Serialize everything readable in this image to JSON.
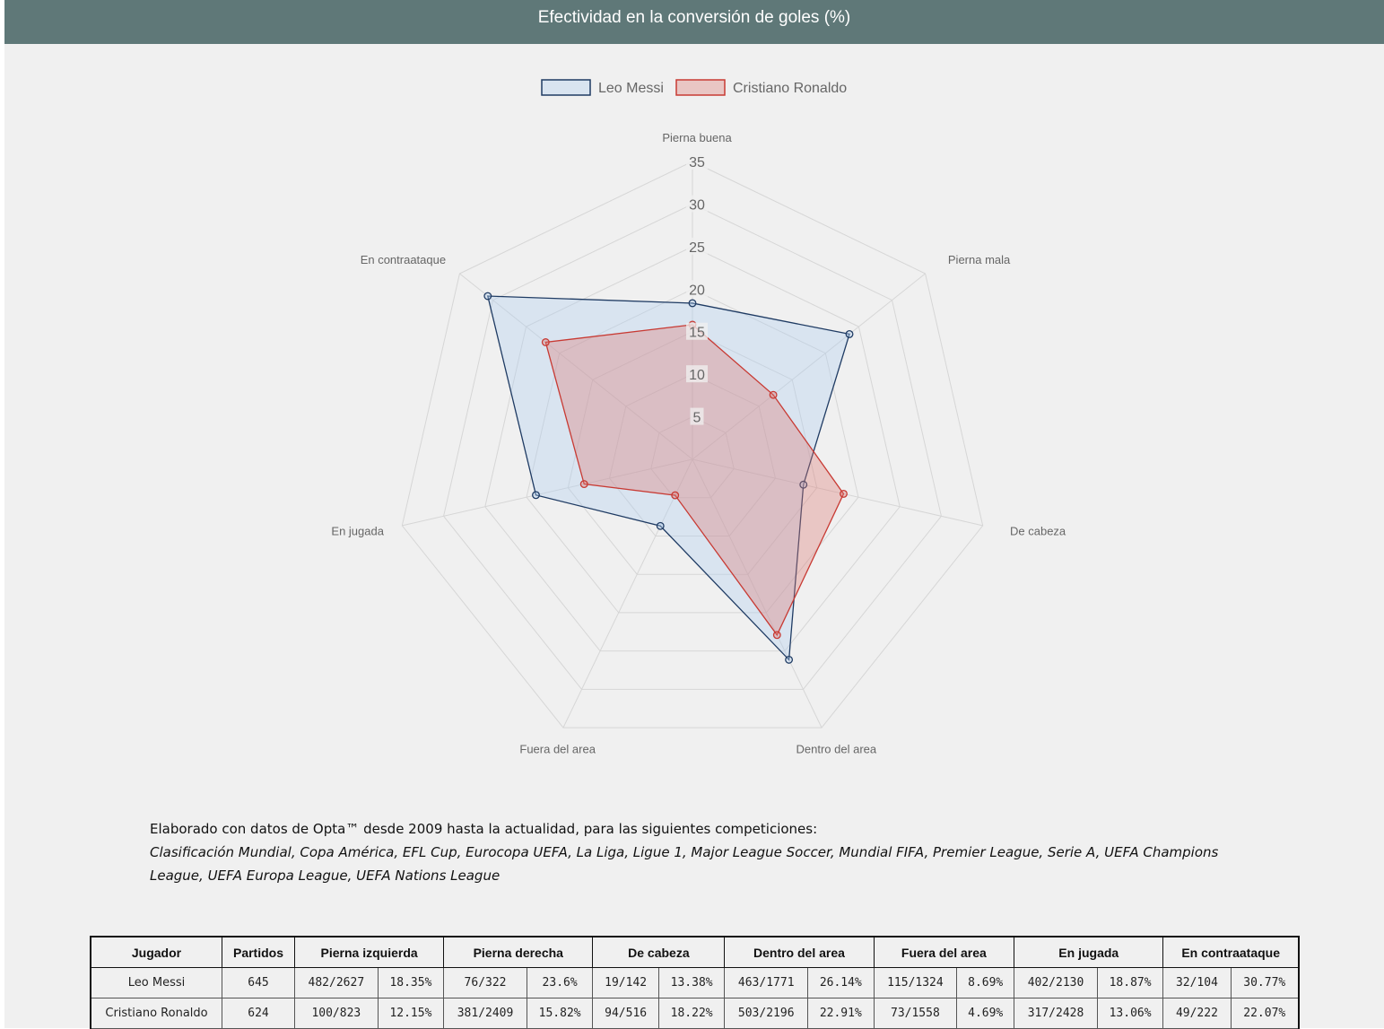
{
  "header": {
    "title": "Efectividad en la conversión de goles (%)"
  },
  "colors": {
    "messi_stroke": "#1f3b63",
    "messi_fill": "rgba(175,206,242,0.35)",
    "ronaldo_stroke": "#c83a33",
    "ronaldo_fill": "rgba(220,120,115,0.35)",
    "grid": "#d6d6d6"
  },
  "chart_data": {
    "type": "radar",
    "title": "Efectividad en la conversión de goles (%)",
    "axes": [
      "Pierna buena",
      "Pierna mala",
      "De cabeza",
      "Dentro del area",
      "Fuera del area",
      "En jugada",
      "En contraataque"
    ],
    "r_range": [
      0,
      35
    ],
    "ticks": [
      5,
      10,
      15,
      20,
      25,
      30,
      35
    ],
    "grid": true,
    "legend_position": "top-center",
    "series": [
      {
        "name": "Leo Messi",
        "values": [
          18.35,
          23.6,
          13.38,
          26.14,
          8.69,
          18.87,
          30.77
        ]
      },
      {
        "name": "Cristiano Ronaldo",
        "values": [
          15.82,
          12.15,
          18.22,
          22.91,
          4.69,
          13.06,
          22.07
        ]
      }
    ]
  },
  "note": {
    "line1": "Elaborado con datos de Opta™ desde 2009 hasta la actualidad, para las siguientes competiciones:",
    "competitions": "Clasificación Mundial, Copa América, EFL Cup, Eurocopa UEFA, La Liga, Ligue 1, Major League Soccer, Mundial FIFA, Premier League, Serie A, UEFA Champions League, UEFA Europa League, UEFA Nations League"
  },
  "table": {
    "headers": [
      "Jugador",
      "Partidos",
      "Pierna izquierda",
      "Pierna derecha",
      "De cabeza",
      "Dentro del area",
      "Fuera del area",
      "En jugada",
      "En contraataque"
    ],
    "rows": [
      {
        "name": "Leo Messi",
        "partidos": "645",
        "cells": [
          "482/2627",
          "18.35%",
          "76/322",
          "23.6%",
          "19/142",
          "13.38%",
          "463/1771",
          "26.14%",
          "115/1324",
          "8.69%",
          "402/2130",
          "18.87%",
          "32/104",
          "30.77%"
        ]
      },
      {
        "name": "Cristiano Ronaldo",
        "partidos": "624",
        "cells": [
          "100/823",
          "12.15%",
          "381/2409",
          "15.82%",
          "94/516",
          "18.22%",
          "503/2196",
          "22.91%",
          "73/1558",
          "4.69%",
          "317/2428",
          "13.06%",
          "49/222",
          "22.07%"
        ]
      }
    ]
  }
}
